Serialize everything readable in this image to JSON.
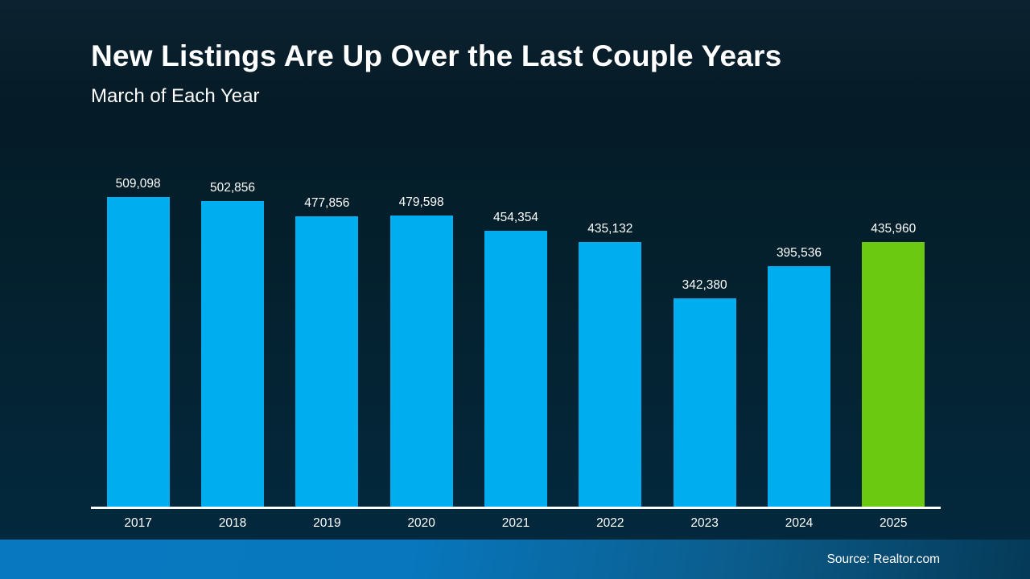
{
  "slide": {
    "title": "New Listings Are Up Over the Last Couple Years",
    "subtitle": "March of Each Year",
    "source": "Source: Realtor.com"
  },
  "colors": {
    "background_top": "#0d2230",
    "background_bottom": "#032a40",
    "bar_blue": "#00AEEF",
    "bar_green": "#6CC912",
    "axis_line": "#ffffff",
    "text": "#ffffff",
    "footer_left": "#0879c1",
    "footer_right": "#053a58"
  },
  "chart_data": {
    "type": "bar",
    "title": "New Listings Are Up Over the Last Couple Years",
    "subtitle": "March of Each Year",
    "categories": [
      "2017",
      "2018",
      "2019",
      "2020",
      "2021",
      "2022",
      "2023",
      "2024",
      "2025"
    ],
    "values": [
      509098,
      502856,
      477856,
      479598,
      454354,
      435132,
      342380,
      395536,
      435960
    ],
    "value_labels": [
      "509,098",
      "502,856",
      "477,856",
      "479,598",
      "454,354",
      "435,132",
      "342,380",
      "395,536",
      "435,960"
    ],
    "bar_color": "#00AEEF",
    "highlight_color": "#6CC912",
    "highlight_index": 8,
    "xlabel": "",
    "ylabel": "",
    "ylim": [
      0,
      509098
    ],
    "grid": false,
    "legend": false,
    "data_labels": true,
    "source": "Source: Realtor.com"
  }
}
